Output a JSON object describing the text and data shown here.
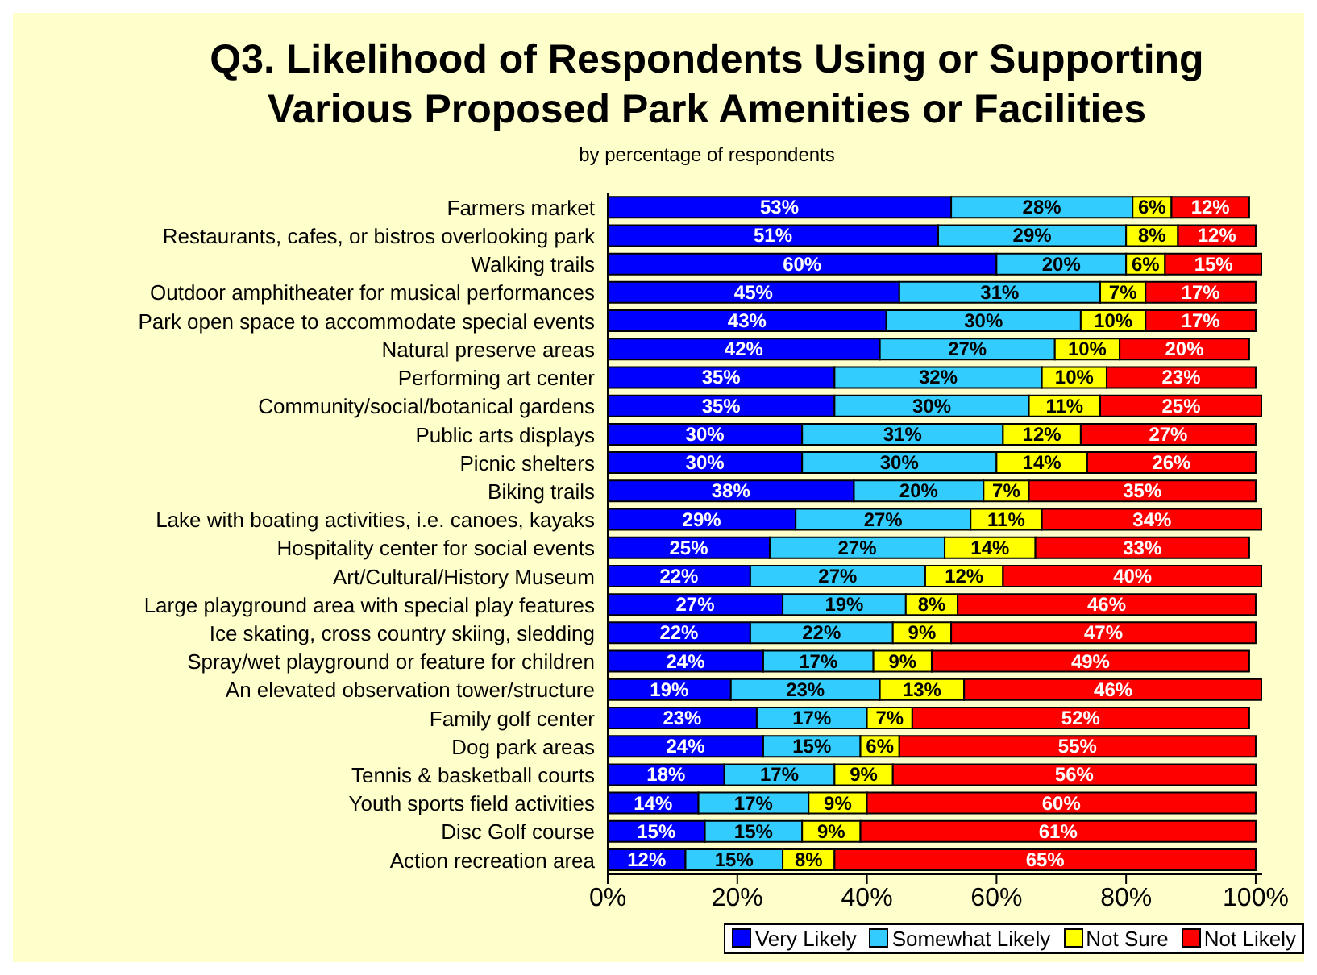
{
  "chart_data": {
    "type": "bar",
    "orientation": "horizontal",
    "stacked": true,
    "title": "Q3. Likelihood of Respondents Using or Supporting Various Proposed Park Amenities or Facilities",
    "subtitle": "by percentage of respondents",
    "categories": [
      "Farmers market",
      "Restaurants, cafes, or bistros overlooking park",
      "Walking trails",
      "Outdoor amphitheater for musical performances",
      "Park open space to accommodate special events",
      "Natural preserve areas",
      "Performing art center",
      "Community/social/botanical gardens",
      "Public arts displays",
      "Picnic shelters",
      "Biking trails",
      "Lake with boating activities, i.e. canoes, kayaks",
      "Hospitality center for social events",
      "Art/Cultural/History Museum",
      "Large playground area with special play features",
      "Ice skating, cross country skiing, sledding",
      "Spray/wet playground or feature for children",
      "An elevated observation tower/structure",
      "Family golf center",
      "Dog park areas",
      "Tennis & basketball courts",
      "Youth sports field activities",
      "Disc Golf course",
      "Action recreation area"
    ],
    "series": [
      {
        "name": "Very Likely",
        "color": "#0000ff",
        "values": [
          53,
          51,
          60,
          45,
          43,
          42,
          35,
          35,
          30,
          30,
          38,
          29,
          25,
          22,
          27,
          22,
          24,
          19,
          23,
          24,
          18,
          14,
          15,
          12
        ],
        "value_labels": [
          "53%",
          "51%",
          "60%",
          "45%",
          "43%",
          "42%",
          "35%",
          "35%",
          "30%",
          "30%",
          "38%",
          "29%",
          "25%",
          "22%",
          "27%",
          "22%",
          "24%",
          "19%",
          "23%",
          "24%",
          "18%",
          "14%",
          "15%",
          "12%"
        ]
      },
      {
        "name": "Somewhat Likely",
        "color": "#33ccff",
        "values": [
          28,
          29,
          20,
          31,
          30,
          27,
          32,
          30,
          31,
          30,
          20,
          27,
          27,
          27,
          19,
          22,
          17,
          23,
          17,
          15,
          17,
          17,
          15,
          15
        ],
        "value_labels": [
          "28%",
          "29%",
          "20%",
          "31%",
          "30%",
          "27%",
          "32%",
          "30%",
          "31%",
          "30%",
          "20%",
          "27%",
          "27%",
          "27%",
          "19%",
          "22%",
          "17%",
          "23%",
          "17%",
          "15%",
          "17%",
          "17%",
          "15%",
          "15%"
        ]
      },
      {
        "name": "Not Sure",
        "color": "#ffff00",
        "values": [
          6,
          8,
          6,
          7,
          10,
          10,
          10,
          11,
          12,
          14,
          7,
          11,
          14,
          12,
          8,
          9,
          9,
          13,
          7,
          6,
          9,
          9,
          9,
          8
        ],
        "value_labels": [
          "6%",
          "8%",
          "6%",
          "7%",
          "10%",
          "10%",
          "10%",
          "11%",
          "12%",
          "14%",
          "7%",
          "11%",
          "14%",
          "12%",
          "8%",
          "9%",
          "9%",
          "13%",
          "7%",
          "6%",
          "9%",
          "9%",
          "9%",
          "8%"
        ]
      },
      {
        "name": "Not Likely",
        "color": "#ff0000",
        "values": [
          12,
          12,
          15,
          17,
          17,
          20,
          23,
          25,
          27,
          26,
          35,
          34,
          33,
          40,
          46,
          47,
          49,
          46,
          52,
          55,
          56,
          60,
          61,
          65
        ],
        "value_labels": [
          "12%",
          "12%",
          "15%",
          "17%",
          "17%",
          "20%",
          "23%",
          "25%",
          "27%",
          "26%",
          "35%",
          "34%",
          "33%",
          "40%",
          "46%",
          "47%",
          "49%",
          "46%",
          "52%",
          "55%",
          "56%",
          "60%",
          "61%",
          "65%"
        ]
      }
    ],
    "xlim": [
      0,
      101
    ],
    "xticks": [
      {
        "value": 0,
        "label": "0%"
      },
      {
        "value": 20,
        "label": "20%"
      },
      {
        "value": 40,
        "label": "40%"
      },
      {
        "value": 60,
        "label": "60%"
      },
      {
        "value": 80,
        "label": "80%"
      },
      {
        "value": 100,
        "label": "100%"
      }
    ],
    "legend": "bottom right",
    "grid": false
  }
}
